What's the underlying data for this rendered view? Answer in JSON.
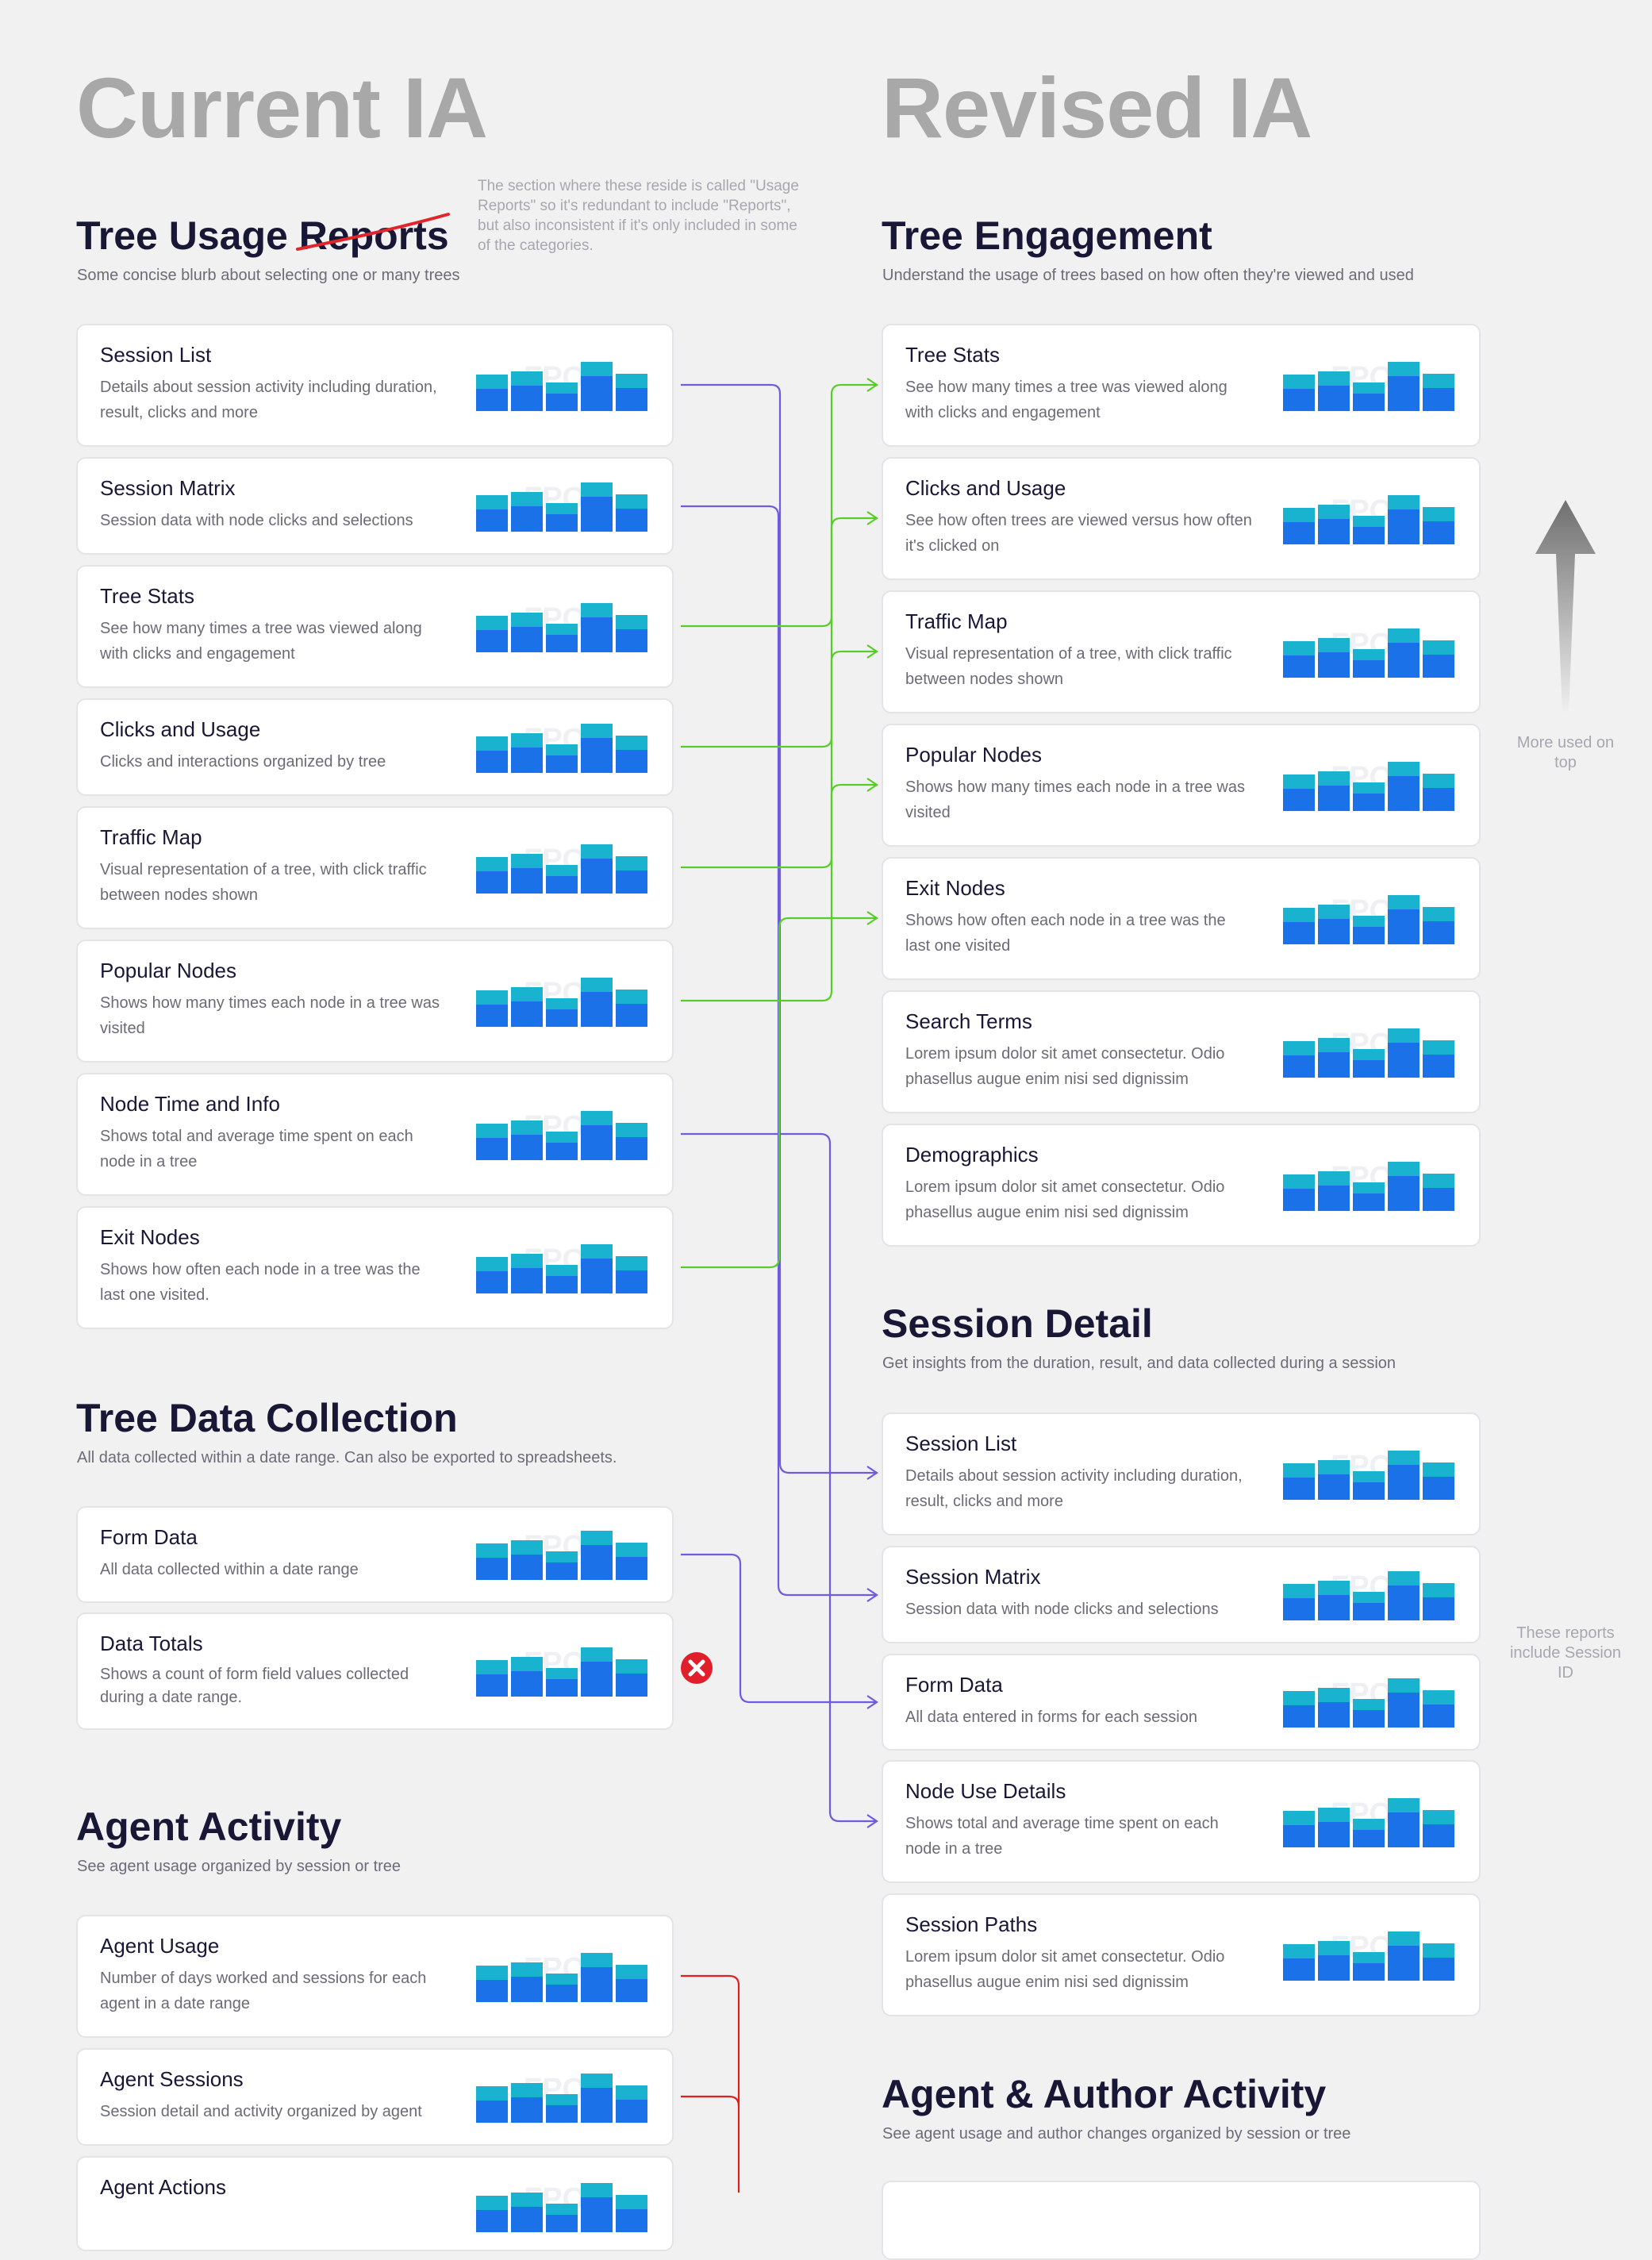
{
  "current_title": "Current IA",
  "revised_title": "Revised IA",
  "note": "The section where these reside is called \"Usage Reports\" so it's redundant to include \"Reports\", but also inconsistent if it's only included in some of the categories.",
  "side_notes": {
    "more_used": "More used on top",
    "session_id": "These reports include Session ID"
  },
  "thumb_watermark": "FPO",
  "colors": {
    "purple_connector": "#6d5be0",
    "green_connector": "#55cf25",
    "red_connector": "#e01f1f",
    "bar_base": "#1b72e8",
    "bar_top": "#19b3cf"
  },
  "icons": {
    "removed": "close-circle-icon",
    "ranking": "arrow-up-icon"
  },
  "current": {
    "tree_usage": {
      "title_prefix": "Tree Usage ",
      "title_struck": "Reports",
      "blurb": "Some concise blurb about selecting one or many trees",
      "cards": [
        {
          "title": "Session List",
          "desc": "Details about session activity including duration, result, clicks and more"
        },
        {
          "title": "Session Matrix",
          "desc": "Session data with node clicks and selections"
        },
        {
          "title": "Tree Stats",
          "desc": "See how many times a tree was viewed along with clicks and engagement"
        },
        {
          "title": "Clicks and Usage",
          "desc": "Clicks and interactions organized by tree"
        },
        {
          "title": "Traffic Map",
          "desc": "Visual representation of a tree, with click traffic between nodes shown"
        },
        {
          "title": "Popular Nodes",
          "desc": "Shows how many times each node in a tree was visited"
        },
        {
          "title": "Node Time and Info",
          "desc": "Shows total and average time spent on each node in a tree"
        },
        {
          "title": "Exit Nodes",
          "desc": "Shows how often each node in a tree was the last one visited."
        }
      ]
    },
    "data_collection": {
      "title": "Tree Data Collection",
      "blurb": "All data collected within a date range. Can also be exported to spreadsheets.",
      "cards": [
        {
          "title": "Form Data",
          "desc": "All data collected within a date range"
        },
        {
          "title": "Data Totals",
          "desc": "Shows a count of form field values collected during a date range."
        }
      ]
    },
    "agent_activity": {
      "title": "Agent Activity",
      "blurb": "See agent usage organized by session or tree",
      "cards": [
        {
          "title": "Agent Usage",
          "desc": "Number of days worked and sessions for each agent in a date range"
        },
        {
          "title": "Agent Sessions",
          "desc": "Session detail and activity organized by agent"
        },
        {
          "title": "Agent Actions",
          "desc": ""
        }
      ]
    }
  },
  "revised": {
    "tree_engagement": {
      "title": "Tree Engagement",
      "blurb": "Understand the usage of trees based on how often they're viewed and used",
      "cards": [
        {
          "title": "Tree Stats",
          "desc": "See how many times a tree was viewed along with clicks and engagement"
        },
        {
          "title": "Clicks and Usage",
          "desc": "See how often trees are viewed versus how often it's clicked on"
        },
        {
          "title": "Traffic Map",
          "desc": "Visual representation of a tree, with click traffic between nodes shown"
        },
        {
          "title": "Popular Nodes",
          "desc": "Shows how many times each node in a tree was visited"
        },
        {
          "title": "Exit Nodes",
          "desc": "Shows how often each node in a tree was the last one visited"
        },
        {
          "title": "Search Terms",
          "desc": "Lorem ipsum dolor sit amet consectetur. Odio phasellus augue enim nisi sed dignissim"
        },
        {
          "title": "Demographics",
          "desc": "Lorem ipsum dolor sit amet consectetur. Odio phasellus augue enim nisi sed dignissim"
        }
      ]
    },
    "session_detail": {
      "title": "Session Detail",
      "blurb": "Get insights from the duration, result, and data collected during a session",
      "cards": [
        {
          "title": "Session List",
          "desc": "Details about session activity including duration, result, clicks and more"
        },
        {
          "title": "Session Matrix",
          "desc": "Session data with node clicks and selections"
        },
        {
          "title": "Form Data",
          "desc": "All data entered in forms for each session"
        },
        {
          "title": "Node Use Details",
          "desc": "Shows total and average time spent on each node in a tree"
        },
        {
          "title": "Session Paths",
          "desc": "Lorem ipsum dolor sit amet consectetur. Odio phasellus augue enim nisi sed dignissim"
        }
      ]
    },
    "agent_author": {
      "title": "Agent & Author Activity",
      "blurb": "See agent usage and author changes organized by session or tree"
    }
  }
}
